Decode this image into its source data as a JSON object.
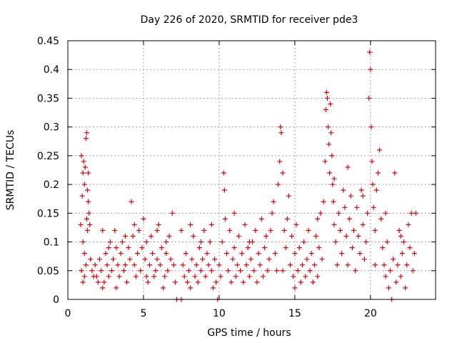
{
  "chart_data": {
    "type": "scatter",
    "title": "Day 226 of 2020, SRMTID for receiver pde3",
    "xlabel": "GPS time / hours",
    "ylabel": "SRMTID / TECUs",
    "xlim": [
      0,
      24.3
    ],
    "ylim": [
      0,
      0.45
    ],
    "xticks": [
      0,
      5,
      10,
      15,
      20
    ],
    "yticks": [
      0,
      0.05,
      0.1,
      0.15,
      0.2,
      0.25,
      0.3,
      0.35,
      0.4,
      0.45
    ],
    "ytick_labels": [
      "0",
      "0.05",
      "0.1",
      "0.15",
      "0.2",
      "0.25",
      "0.3",
      "0.35",
      "0.4",
      "0.45"
    ],
    "grid": true,
    "marker": "plus",
    "series": [
      {
        "name": "SRMTID",
        "color": "#e00000",
        "points": [
          [
            0.85,
            0.13
          ],
          [
            0.9,
            0.25
          ],
          [
            0.95,
            0.18
          ],
          [
            1.0,
            0.22
          ],
          [
            1.05,
            0.24
          ],
          [
            1.1,
            0.2
          ],
          [
            1.15,
            0.23
          ],
          [
            1.2,
            0.28
          ],
          [
            1.25,
            0.29
          ],
          [
            1.3,
            0.19
          ],
          [
            1.35,
            0.17
          ],
          [
            1.4,
            0.15
          ],
          [
            1.0,
            0.1
          ],
          [
            1.1,
            0.08
          ],
          [
            1.2,
            0.06
          ],
          [
            1.3,
            0.12
          ],
          [
            1.45,
            0.13
          ],
          [
            1.5,
            0.07
          ],
          [
            1.6,
            0.05
          ],
          [
            1.7,
            0.04
          ],
          [
            0.9,
            0.05
          ],
          [
            1.0,
            0.03
          ],
          [
            1.1,
            0.04
          ],
          [
            1.25,
            0.14
          ],
          [
            1.35,
            0.22
          ],
          [
            1.8,
            0.06
          ],
          [
            1.9,
            0.04
          ],
          [
            2.0,
            0.03
          ],
          [
            2.1,
            0.07
          ],
          [
            2.2,
            0.05
          ],
          [
            2.3,
            0.02
          ],
          [
            2.4,
            0.03
          ],
          [
            2.5,
            0.08
          ],
          [
            2.6,
            0.06
          ],
          [
            2.7,
            0.04
          ],
          [
            2.8,
            0.1
          ],
          [
            2.9,
            0.05
          ],
          [
            3.0,
            0.07
          ],
          [
            3.1,
            0.12
          ],
          [
            3.2,
            0.09
          ],
          [
            3.3,
            0.06
          ],
          [
            3.4,
            0.04
          ],
          [
            3.5,
            0.08
          ],
          [
            3.6,
            0.1
          ],
          [
            3.7,
            0.05
          ],
          [
            3.8,
            0.06
          ],
          [
            3.9,
            0.03
          ],
          [
            4.0,
            0.09
          ],
          [
            4.1,
            0.07
          ],
          [
            4.2,
            0.17
          ],
          [
            4.3,
            0.11
          ],
          [
            4.4,
            0.06
          ],
          [
            4.5,
            0.04
          ],
          [
            4.6,
            0.08
          ],
          [
            4.7,
            0.12
          ],
          [
            4.8,
            0.05
          ],
          [
            4.9,
            0.09
          ],
          [
            5.0,
            0.14
          ],
          [
            5.1,
            0.07
          ],
          [
            5.2,
            0.1
          ],
          [
            5.3,
            0.03
          ],
          [
            5.4,
            0.06
          ],
          [
            5.5,
            0.11
          ],
          [
            5.6,
            0.08
          ],
          [
            5.7,
            0.04
          ],
          [
            5.8,
            0.05
          ],
          [
            5.9,
            0.07
          ],
          [
            6.0,
            0.13
          ],
          [
            6.1,
            0.06
          ],
          [
            6.2,
            0.09
          ],
          [
            6.3,
            0.02
          ],
          [
            6.4,
            0.04
          ],
          [
            6.5,
            0.08
          ],
          [
            6.6,
            0.05
          ],
          [
            6.7,
            0.11
          ],
          [
            6.8,
            0.07
          ],
          [
            6.9,
            0.15
          ],
          [
            7.0,
            0.06
          ],
          [
            7.1,
            0.03
          ],
          [
            2.3,
            0.12
          ],
          [
            2.7,
            0.09
          ],
          [
            3.2,
            0.02
          ],
          [
            3.8,
            0.11
          ],
          [
            4.4,
            0.13
          ],
          [
            5.2,
            0.04
          ],
          [
            5.9,
            0.12
          ],
          [
            6.5,
            0.1
          ],
          [
            7.2,
            0.0
          ],
          [
            7.5,
            0.0
          ],
          [
            7.5,
            0.12
          ],
          [
            7.6,
            0.06
          ],
          [
            7.7,
            0.04
          ],
          [
            7.8,
            0.08
          ],
          [
            7.9,
            0.03
          ],
          [
            8.0,
            0.05
          ],
          [
            8.1,
            0.02
          ],
          [
            8.2,
            0.07
          ],
          [
            8.3,
            0.11
          ],
          [
            8.4,
            0.04
          ],
          [
            8.5,
            0.06
          ],
          [
            8.6,
            0.03
          ],
          [
            8.7,
            0.09
          ],
          [
            8.8,
            0.05
          ],
          [
            8.9,
            0.07
          ],
          [
            9.0,
            0.12
          ],
          [
            9.1,
            0.04
          ],
          [
            9.2,
            0.08
          ],
          [
            9.3,
            0.06
          ],
          [
            9.4,
            0.1
          ],
          [
            9.5,
            0.05
          ],
          [
            9.6,
            0.02
          ],
          [
            9.7,
            0.07
          ],
          [
            9.8,
            0.03
          ],
          [
            9.9,
            0.0
          ],
          [
            10.0,
            0.06
          ],
          [
            10.1,
            0.04
          ],
          [
            10.2,
            0.1
          ],
          [
            10.3,
            0.22
          ],
          [
            10.35,
            0.19
          ],
          [
            10.4,
            0.14
          ],
          [
            10.5,
            0.08
          ],
          [
            10.6,
            0.05
          ],
          [
            10.7,
            0.12
          ],
          [
            10.8,
            0.03
          ],
          [
            10.9,
            0.07
          ],
          [
            11.0,
            0.09
          ],
          [
            11.1,
            0.04
          ],
          [
            11.2,
            0.06
          ],
          [
            11.3,
            0.11
          ],
          [
            11.4,
            0.05
          ],
          [
            11.5,
            0.08
          ],
          [
            11.6,
            0.03
          ],
          [
            11.7,
            0.13
          ],
          [
            11.8,
            0.06
          ],
          [
            11.9,
            0.09
          ],
          [
            12.0,
            0.04
          ],
          [
            12.1,
            0.07
          ],
          [
            12.2,
            0.1
          ],
          [
            12.3,
            0.05
          ],
          [
            12.4,
            0.12
          ],
          [
            12.5,
            0.03
          ],
          [
            12.6,
            0.08
          ],
          [
            12.7,
            0.06
          ],
          [
            12.8,
            0.14
          ],
          [
            12.9,
            0.04
          ],
          [
            13.0,
            0.09
          ],
          [
            13.1,
            0.11
          ],
          [
            13.2,
            0.05
          ],
          [
            13.3,
            0.07
          ],
          [
            8.1,
            0.13
          ],
          [
            8.8,
            0.1
          ],
          [
            9.5,
            0.13
          ],
          [
            11.0,
            0.15
          ],
          [
            12.0,
            0.1
          ],
          [
            13.4,
            0.12
          ],
          [
            13.5,
            0.15
          ],
          [
            13.6,
            0.17
          ],
          [
            13.7,
            0.08
          ],
          [
            13.8,
            0.05
          ],
          [
            13.9,
            0.2
          ],
          [
            14.0,
            0.24
          ],
          [
            14.05,
            0.3
          ],
          [
            14.1,
            0.29
          ],
          [
            14.2,
            0.22
          ],
          [
            14.3,
            0.12
          ],
          [
            14.4,
            0.09
          ],
          [
            14.5,
            0.14
          ],
          [
            14.6,
            0.18
          ],
          [
            14.7,
            0.06
          ],
          [
            14.8,
            0.11
          ],
          [
            14.9,
            0.04
          ],
          [
            15.0,
            0.08
          ],
          [
            15.1,
            0.13
          ],
          [
            15.2,
            0.05
          ],
          [
            15.3,
            0.09
          ],
          [
            15.4,
            0.03
          ],
          [
            15.5,
            0.06
          ],
          [
            15.6,
            0.1
          ],
          [
            15.7,
            0.04
          ],
          [
            15.8,
            0.07
          ],
          [
            15.9,
            0.12
          ],
          [
            16.0,
            0.05
          ],
          [
            16.1,
            0.08
          ],
          [
            16.2,
            0.03
          ],
          [
            16.3,
            0.06
          ],
          [
            16.4,
            0.11
          ],
          [
            16.5,
            0.04
          ],
          [
            16.6,
            0.09
          ],
          [
            16.7,
            0.15
          ],
          [
            16.8,
            0.07
          ],
          [
            16.9,
            0.17
          ],
          [
            17.0,
            0.24
          ],
          [
            17.05,
            0.33
          ],
          [
            17.1,
            0.36
          ],
          [
            17.15,
            0.35
          ],
          [
            17.2,
            0.3
          ],
          [
            17.25,
            0.27
          ],
          [
            17.3,
            0.22
          ],
          [
            17.35,
            0.34
          ],
          [
            17.4,
            0.29
          ],
          [
            17.45,
            0.25
          ],
          [
            17.5,
            0.2
          ],
          [
            17.55,
            0.17
          ],
          [
            17.6,
            0.13
          ],
          [
            17.7,
            0.1
          ],
          [
            17.8,
            0.06
          ],
          [
            17.9,
            0.15
          ],
          [
            18.0,
            0.12
          ],
          [
            18.1,
            0.08
          ],
          [
            18.2,
            0.19
          ],
          [
            18.3,
            0.16
          ],
          [
            18.4,
            0.11
          ],
          [
            18.5,
            0.06
          ],
          [
            18.6,
            0.14
          ],
          [
            18.7,
            0.18
          ],
          [
            18.8,
            0.09
          ],
          [
            18.9,
            0.12
          ],
          [
            19.0,
            0.05
          ],
          [
            19.1,
            0.16
          ],
          [
            19.2,
            0.11
          ],
          [
            19.3,
            0.08
          ],
          [
            19.4,
            0.19
          ],
          [
            19.5,
            0.13
          ],
          [
            19.6,
            0.07
          ],
          [
            19.7,
            0.1
          ],
          [
            19.8,
            0.15
          ],
          [
            19.9,
            0.35
          ],
          [
            19.95,
            0.43
          ],
          [
            20.0,
            0.4
          ],
          [
            20.05,
            0.3
          ],
          [
            20.1,
            0.24
          ],
          [
            20.15,
            0.2
          ],
          [
            20.2,
            0.16
          ],
          [
            20.3,
            0.12
          ],
          [
            20.4,
            0.19
          ],
          [
            20.5,
            0.22
          ],
          [
            20.6,
            0.26
          ],
          [
            20.7,
            0.14
          ],
          [
            20.8,
            0.09
          ],
          [
            20.9,
            0.06
          ],
          [
            21.0,
            0.04
          ],
          [
            21.1,
            0.1
          ],
          [
            21.2,
            0.02
          ],
          [
            21.3,
            0.05
          ],
          [
            21.4,
            0.0
          ],
          [
            21.5,
            0.07
          ],
          [
            21.6,
            0.22
          ],
          [
            21.7,
            0.03
          ],
          [
            21.8,
            0.06
          ],
          [
            21.9,
            0.12
          ],
          [
            22.0,
            0.04
          ],
          [
            22.1,
            0.08
          ],
          [
            22.2,
            0.1
          ],
          [
            22.3,
            0.02
          ],
          [
            22.4,
            0.06
          ],
          [
            22.5,
            0.13
          ],
          [
            22.6,
            0.09
          ],
          [
            22.7,
            0.15
          ],
          [
            22.8,
            0.05
          ],
          [
            22.9,
            0.08
          ],
          [
            23.0,
            0.15
          ],
          [
            14.2,
            0.05
          ],
          [
            15.0,
            0.02
          ],
          [
            16.5,
            0.14
          ],
          [
            17.6,
            0.21
          ],
          [
            18.5,
            0.23
          ],
          [
            19.5,
            0.18
          ],
          [
            20.3,
            0.06
          ],
          [
            21.0,
            0.15
          ],
          [
            22.0,
            0.11
          ]
        ]
      }
    ]
  }
}
